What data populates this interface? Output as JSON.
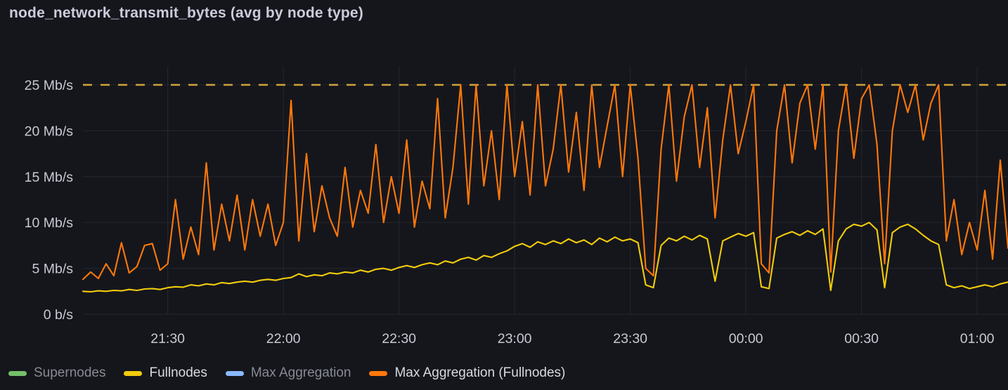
{
  "title": "node_network_transmit_bytes (avg by node type)",
  "colors": {
    "background": "#15161c",
    "title_text": "#ccccdc",
    "axis_text": "#c8c9d2",
    "grid": "rgba(204,204,220,0.09)",
    "threshold": "#cfa13c",
    "legend_enabled_text": "#d8d9df",
    "legend_disabled_text": "#878a92"
  },
  "legend": {
    "items": [
      {
        "label": "Supernodes",
        "color": "#73BF69",
        "enabled": false
      },
      {
        "label": "Fullnodes",
        "color": "#F2CC0C",
        "enabled": true
      },
      {
        "label": "Max Aggregation",
        "color": "#8AB8FF",
        "enabled": false
      },
      {
        "label": "Max Aggregation (Fullnodes)",
        "color": "#FF780A",
        "enabled": true
      }
    ]
  },
  "chart_data": {
    "type": "line",
    "title": "node_network_transmit_bytes (avg by node type)",
    "y_unit": "Mb/s",
    "y_range": [
      0,
      25
    ],
    "y_ticks": [
      {
        "v": 0,
        "label": "0 b/s"
      },
      {
        "v": 5,
        "label": "5 Mb/s"
      },
      {
        "v": 10,
        "label": "10 Mb/s"
      },
      {
        "v": 15,
        "label": "15 Mb/s"
      },
      {
        "v": 20,
        "label": "20 Mb/s"
      },
      {
        "v": 25,
        "label": "25 Mb/s"
      }
    ],
    "x_range_minutes": [
      0,
      240
    ],
    "x_step_minutes": 2,
    "x_ticks": [
      {
        "t": 22,
        "label": "21:30"
      },
      {
        "t": 52,
        "label": "22:00"
      },
      {
        "t": 82,
        "label": "22:30"
      },
      {
        "t": 112,
        "label": "23:00"
      },
      {
        "t": 142,
        "label": "23:30"
      },
      {
        "t": 172,
        "label": "00:00"
      },
      {
        "t": 202,
        "label": "00:30"
      },
      {
        "t": 232,
        "label": "01:00"
      }
    ],
    "threshold": {
      "value": 25,
      "style": "dashed",
      "color": "#cfa13c"
    },
    "grid": true,
    "legend_position": "bottom",
    "series": [
      {
        "name": "Supernodes",
        "color": "#73BF69",
        "visible": false,
        "values": []
      },
      {
        "name": "Fullnodes",
        "color": "#F2CC0C",
        "visible": true,
        "values": [
          2.5,
          2.45,
          2.55,
          2.5,
          2.6,
          2.55,
          2.7,
          2.6,
          2.75,
          2.8,
          2.7,
          2.9,
          3.0,
          2.95,
          3.2,
          3.1,
          3.3,
          3.2,
          3.45,
          3.35,
          3.5,
          3.6,
          3.5,
          3.7,
          3.8,
          3.7,
          3.9,
          4.0,
          4.4,
          4.1,
          4.3,
          4.2,
          4.5,
          4.4,
          4.6,
          4.5,
          4.8,
          4.6,
          4.9,
          5.0,
          4.8,
          5.1,
          5.3,
          5.1,
          5.4,
          5.6,
          5.4,
          5.8,
          5.6,
          6.0,
          6.2,
          5.9,
          6.4,
          6.2,
          6.6,
          6.9,
          7.4,
          7.7,
          7.3,
          7.9,
          7.6,
          8.0,
          7.7,
          8.2,
          7.8,
          8.1,
          7.6,
          8.3,
          7.9,
          8.4,
          8.0,
          8.2,
          7.8,
          3.2,
          2.9,
          7.5,
          8.3,
          8.0,
          8.5,
          8.1,
          8.6,
          8.2,
          3.6,
          8.0,
          8.4,
          8.8,
          8.5,
          8.9,
          3.0,
          2.8,
          8.3,
          8.7,
          9.0,
          8.6,
          9.1,
          8.7,
          9.3,
          2.6,
          8.0,
          9.3,
          9.8,
          9.6,
          10.0,
          9.2,
          2.9,
          8.9,
          9.5,
          9.8,
          9.3,
          8.6,
          8.0,
          7.6,
          3.2,
          2.9,
          3.1,
          2.8,
          3.0,
          3.2,
          3.0,
          3.3,
          3.5
        ]
      },
      {
        "name": "Max Aggregation",
        "color": "#8AB8FF",
        "visible": false,
        "values": []
      },
      {
        "name": "Max Aggregation (Fullnodes)",
        "color": "#FF780A",
        "visible": true,
        "values": [
          3.8,
          4.6,
          3.9,
          5.5,
          4.2,
          7.8,
          4.5,
          5.2,
          7.5,
          7.7,
          4.8,
          5.5,
          12.5,
          6.0,
          9.5,
          6.5,
          16.5,
          7.0,
          12.0,
          8.0,
          13.0,
          7.0,
          12.5,
          8.5,
          12.0,
          7.5,
          10.0,
          23.3,
          8.0,
          17.5,
          9.0,
          14.0,
          10.5,
          8.5,
          16.0,
          9.5,
          13.5,
          11.0,
          18.5,
          10.0,
          15.0,
          11.0,
          19.0,
          9.5,
          14.5,
          11.5,
          23.5,
          10.5,
          16.0,
          25.0,
          12.0,
          25.0,
          14.0,
          20.0,
          12.5,
          25.0,
          15.0,
          21.0,
          13.0,
          25.0,
          14.0,
          18.0,
          25.0,
          15.5,
          22.0,
          13.5,
          25.0,
          16.0,
          20.5,
          25.0,
          15.0,
          25.0,
          17.0,
          5.0,
          4.2,
          18.0,
          25.0,
          14.5,
          21.5,
          25.0,
          16.0,
          22.5,
          10.5,
          19.0,
          25.0,
          17.5,
          21.0,
          25.0,
          5.5,
          4.5,
          20.0,
          25.0,
          16.5,
          23.0,
          25.0,
          18.0,
          25.0,
          4.6,
          20.0,
          25.0,
          17.0,
          23.5,
          25.0,
          18.5,
          5.5,
          20.0,
          25.0,
          22.0,
          25.0,
          19.0,
          23.0,
          25.0,
          8.0,
          12.5,
          6.5,
          10.0,
          7.0,
          13.5,
          6.0,
          16.8,
          7.2
        ]
      }
    ]
  }
}
